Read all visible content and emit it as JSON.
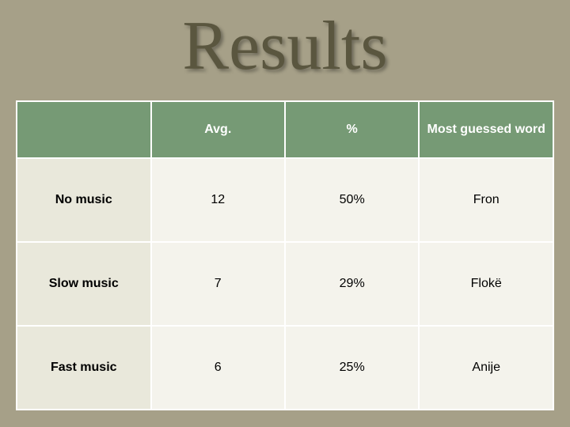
{
  "title": "Results",
  "table": {
    "columns": [
      "",
      "Avg.",
      "%",
      "Most guessed word"
    ],
    "rows": [
      {
        "label": "No music",
        "avg": "12",
        "pct": "50%",
        "word": "Fron"
      },
      {
        "label": "Slow music",
        "avg": "7",
        "pct": "29%",
        "word": "Flokë"
      },
      {
        "label": "Fast music",
        "avg": "6",
        "pct": "25%",
        "word": "Anije"
      }
    ],
    "header_bg": "#769a75",
    "header_fg": "#ffffff",
    "row_label_bg": "#e9e8db",
    "data_bg": "#f4f3ec",
    "border_color": "#ffffff",
    "title_color": "#5a563f",
    "slide_bg": "#a6a088"
  }
}
